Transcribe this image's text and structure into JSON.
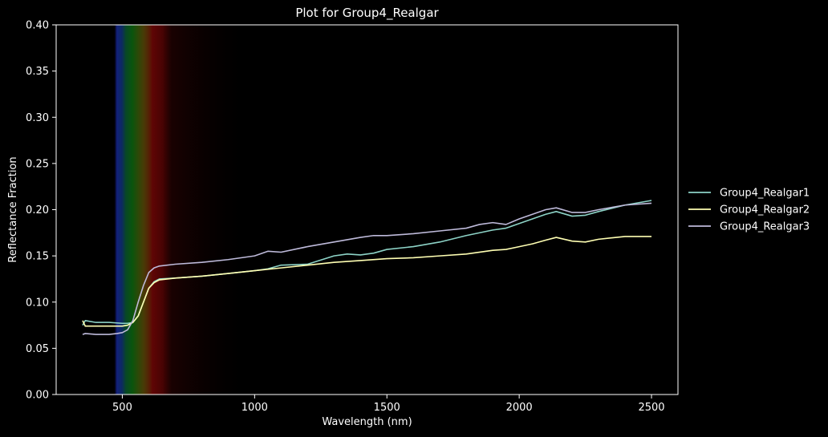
{
  "chart_data": {
    "type": "line",
    "title": "Plot for Group4_Realgar",
    "xlabel": "Wavelength (nm)",
    "ylabel": "Reflectance Fraction",
    "xlim": [
      250,
      2600
    ],
    "ylim": [
      0,
      0.4
    ],
    "xticks": [
      500,
      1000,
      1500,
      2000,
      2500
    ],
    "yticks": [
      0.0,
      0.05,
      0.1,
      0.15,
      0.2,
      0.25,
      0.3,
      0.35,
      0.4
    ],
    "xtick_labels": [
      "500",
      "1000",
      "1500",
      "2000",
      "2500"
    ],
    "ytick_labels": [
      "0.00",
      "0.05",
      "0.10",
      "0.15",
      "0.20",
      "0.25",
      "0.30",
      "0.35",
      "0.40"
    ],
    "legend_position": "right",
    "grid": false,
    "background": "#000000",
    "visible_spectrum_band": [
      470,
      950
    ],
    "series": [
      {
        "name": "Group4_Realgar1",
        "color": "#8dd3c7",
        "x": [
          350,
          360,
          400,
          450,
          500,
          520,
          540,
          560,
          580,
          600,
          620,
          640,
          700,
          800,
          900,
          1000,
          1050,
          1100,
          1200,
          1300,
          1350,
          1400,
          1450,
          1500,
          1600,
          1700,
          1800,
          1900,
          1950,
          2000,
          2050,
          2100,
          2140,
          2200,
          2250,
          2300,
          2400,
          2500
        ],
        "values": [
          0.075,
          0.08,
          0.078,
          0.078,
          0.077,
          0.077,
          0.078,
          0.085,
          0.1,
          0.115,
          0.122,
          0.125,
          0.126,
          0.128,
          0.131,
          0.134,
          0.136,
          0.14,
          0.141,
          0.15,
          0.152,
          0.151,
          0.153,
          0.157,
          0.16,
          0.165,
          0.172,
          0.178,
          0.18,
          0.185,
          0.19,
          0.195,
          0.198,
          0.193,
          0.194,
          0.198,
          0.205,
          0.21
        ]
      },
      {
        "name": "Group4_Realgar2",
        "color": "#ffffb3",
        "x": [
          350,
          360,
          400,
          450,
          500,
          520,
          540,
          560,
          580,
          600,
          620,
          640,
          700,
          800,
          900,
          1000,
          1100,
          1200,
          1300,
          1400,
          1500,
          1600,
          1700,
          1800,
          1900,
          1950,
          2000,
          2050,
          2100,
          2140,
          2200,
          2250,
          2300,
          2400,
          2500
        ],
        "values": [
          0.08,
          0.074,
          0.074,
          0.074,
          0.074,
          0.075,
          0.078,
          0.085,
          0.1,
          0.115,
          0.121,
          0.124,
          0.126,
          0.128,
          0.131,
          0.134,
          0.137,
          0.14,
          0.143,
          0.145,
          0.147,
          0.148,
          0.15,
          0.152,
          0.156,
          0.157,
          0.16,
          0.163,
          0.167,
          0.17,
          0.166,
          0.165,
          0.168,
          0.171,
          0.171
        ]
      },
      {
        "name": "Group4_Realgar3",
        "color": "#bebada",
        "x": [
          350,
          360,
          400,
          450,
          480,
          500,
          520,
          540,
          560,
          580,
          600,
          620,
          640,
          700,
          800,
          900,
          1000,
          1050,
          1100,
          1200,
          1300,
          1400,
          1450,
          1500,
          1600,
          1700,
          1800,
          1850,
          1900,
          1950,
          2000,
          2050,
          2100,
          2140,
          2200,
          2250,
          2300,
          2400,
          2500
        ],
        "values": [
          0.065,
          0.066,
          0.065,
          0.065,
          0.066,
          0.067,
          0.07,
          0.08,
          0.1,
          0.118,
          0.132,
          0.137,
          0.139,
          0.141,
          0.143,
          0.146,
          0.15,
          0.155,
          0.154,
          0.16,
          0.165,
          0.17,
          0.172,
          0.172,
          0.174,
          0.177,
          0.18,
          0.184,
          0.186,
          0.184,
          0.19,
          0.195,
          0.2,
          0.202,
          0.197,
          0.197,
          0.2,
          0.205,
          0.207
        ]
      }
    ]
  }
}
